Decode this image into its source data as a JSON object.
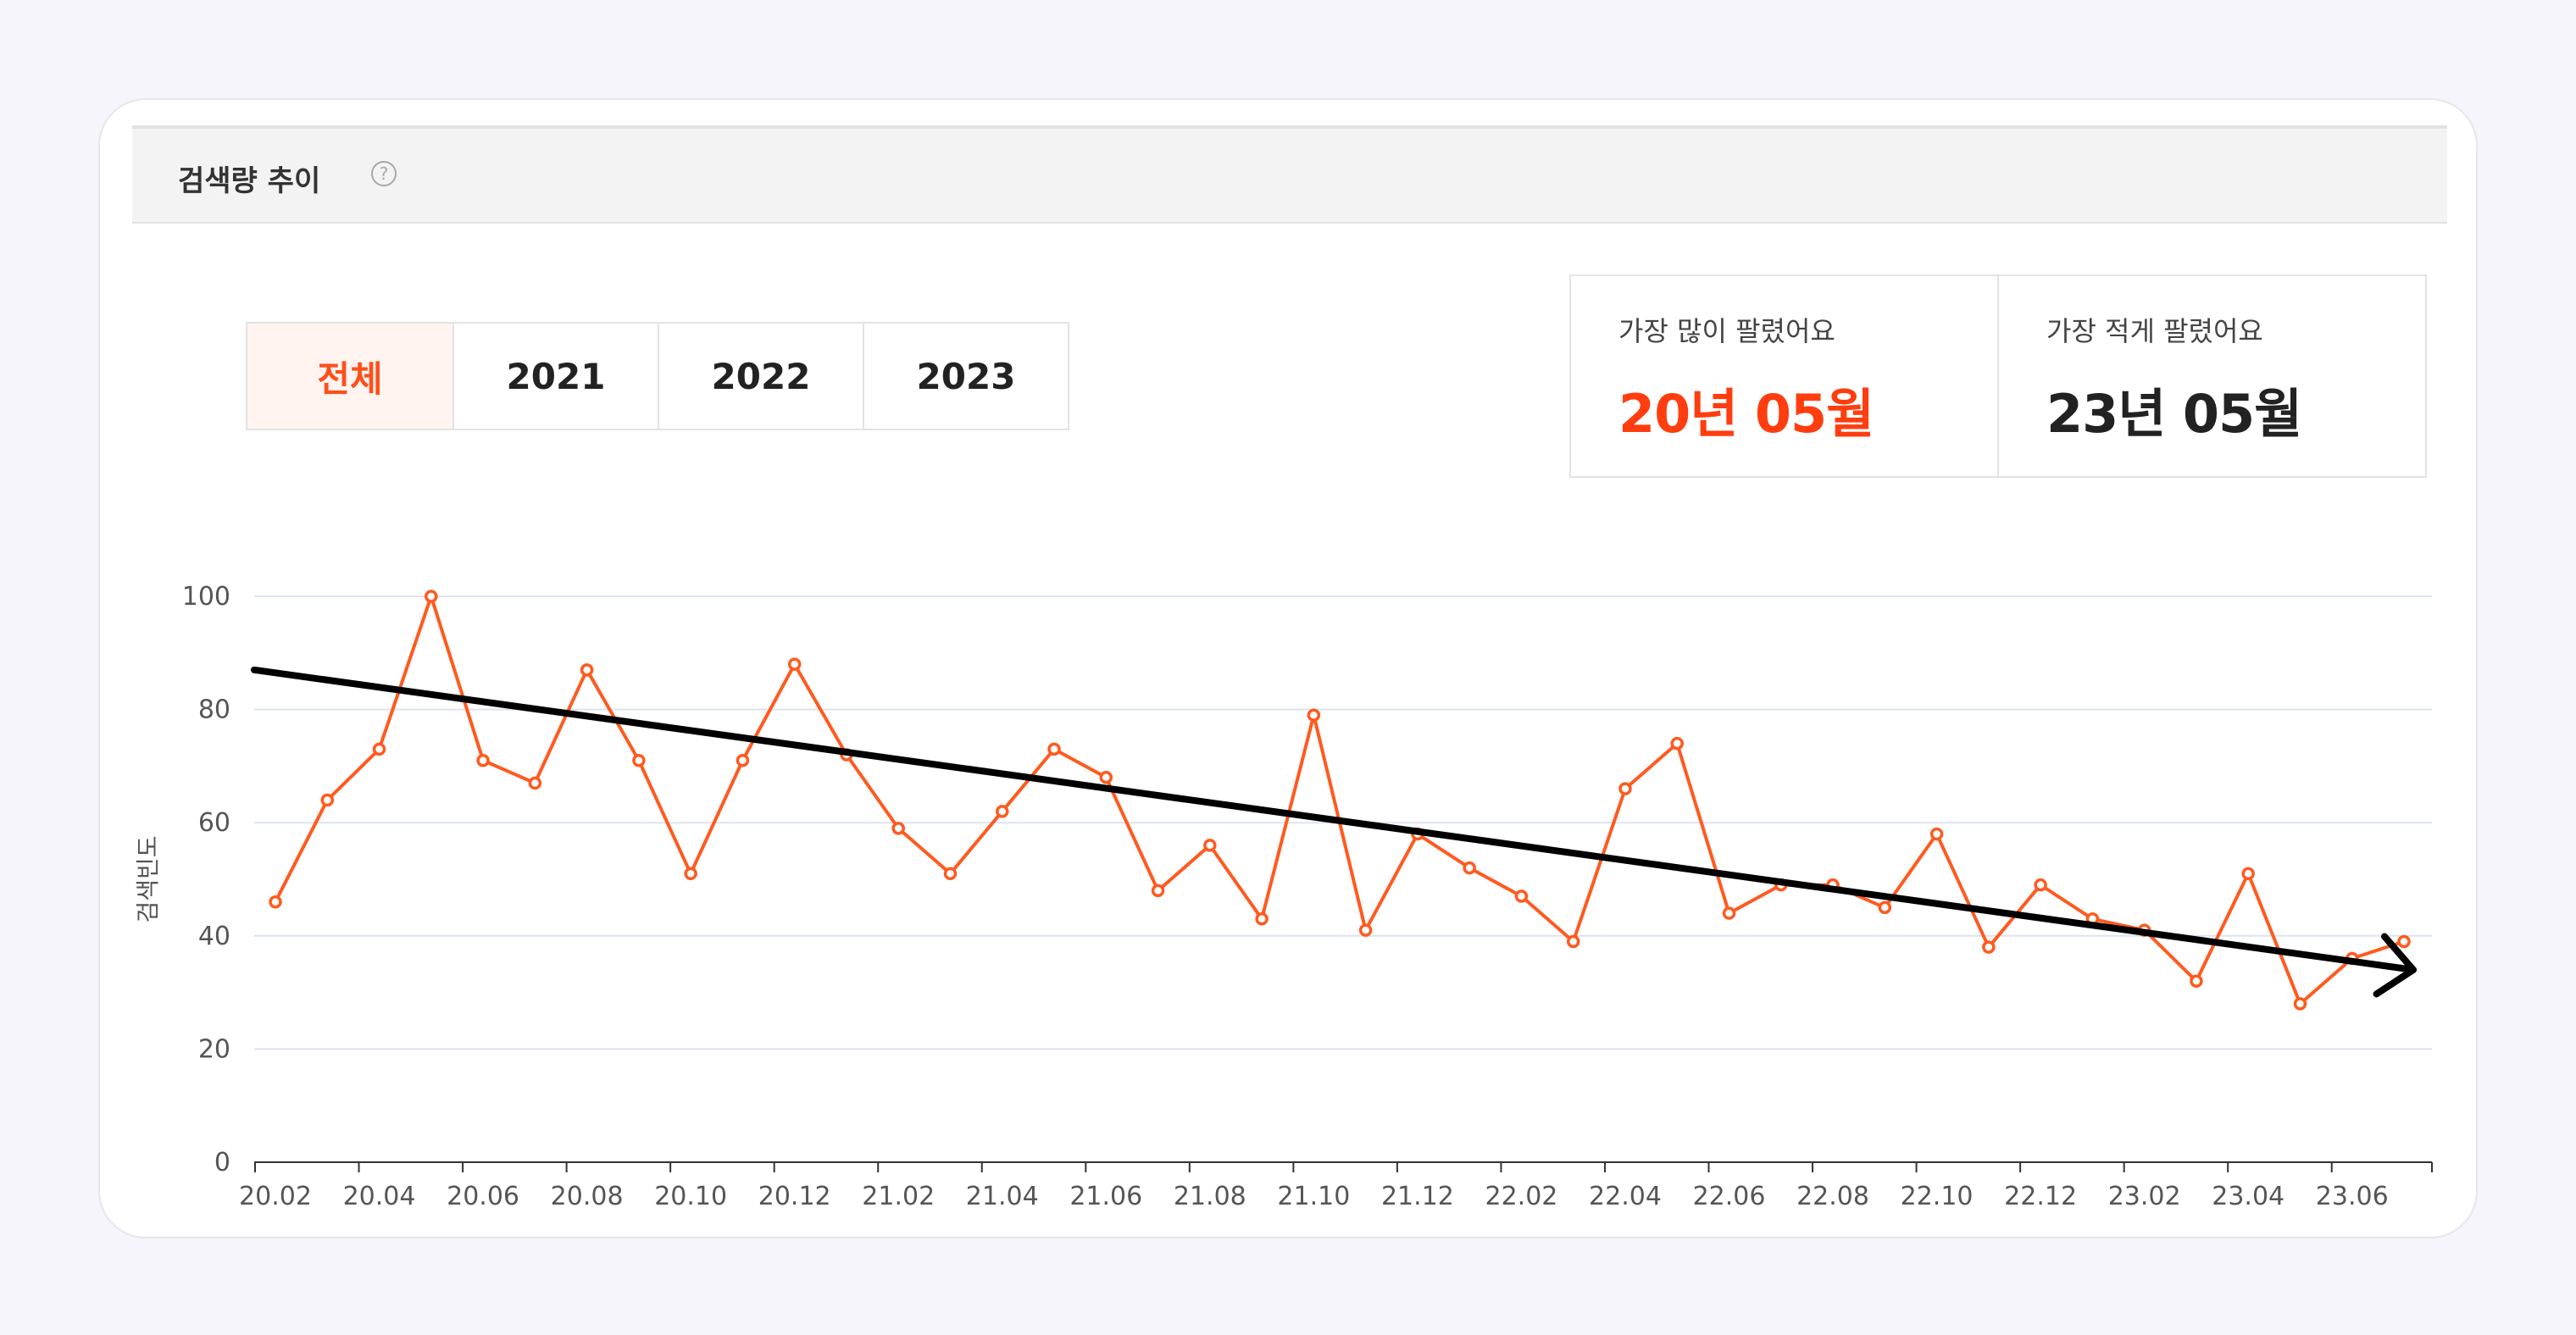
{
  "panel": {
    "title": "검색량 추이",
    "help_icon": "question-circle-icon"
  },
  "tabs": [
    {
      "label": "전체",
      "active": true
    },
    {
      "label": "2021",
      "active": false
    },
    {
      "label": "2022",
      "active": false
    },
    {
      "label": "2023",
      "active": false
    }
  ],
  "stats": {
    "most_label": "가장 많이 팔렸어요",
    "most_value": "20년 05월",
    "least_label": "가장 적게 팔렸어요",
    "least_value": "23년 05월"
  },
  "colors": {
    "accent": "#ff5a1f",
    "trend": "#000000",
    "grid": "#dde3ee"
  },
  "chart_data": {
    "type": "line",
    "ylabel": "검색빈도",
    "ylim": [
      0,
      100
    ],
    "yticks": [
      0,
      20,
      40,
      60,
      80,
      100
    ],
    "xtick_labels": [
      "20.02",
      "20.04",
      "20.06",
      "20.08",
      "20.10",
      "20.12",
      "21.02",
      "21.04",
      "21.06",
      "21.08",
      "21.10",
      "21.12",
      "22.02",
      "22.04",
      "22.06",
      "22.08",
      "22.10",
      "22.12",
      "23.02",
      "23.04",
      "23.06"
    ],
    "x": [
      "20.02",
      "20.03",
      "20.04",
      "20.05",
      "20.06",
      "20.07",
      "20.08",
      "20.09",
      "20.10",
      "20.11",
      "20.12",
      "21.01",
      "21.02",
      "21.03",
      "21.04",
      "21.05",
      "21.06",
      "21.07",
      "21.08",
      "21.09",
      "21.10",
      "21.11",
      "21.12",
      "22.01",
      "22.02",
      "22.03",
      "22.04",
      "22.05",
      "22.06",
      "22.07",
      "22.08",
      "22.09",
      "22.10",
      "22.11",
      "22.12",
      "23.01",
      "23.02",
      "23.03",
      "23.04",
      "23.05",
      "23.06",
      "23.07"
    ],
    "series": [
      {
        "values": [
          46,
          64,
          73,
          100,
          71,
          67,
          87,
          71,
          51,
          71,
          88,
          72,
          59,
          51,
          62,
          73,
          68,
          48,
          56,
          43,
          79,
          41,
          58,
          52,
          47,
          39,
          66,
          74,
          44,
          49,
          49,
          45,
          58,
          38,
          49,
          43,
          41,
          32,
          51,
          28,
          36,
          39
        ]
      }
    ],
    "trendline": {
      "start": [
        "20.02",
        87
      ],
      "end": [
        "23.07",
        34
      ]
    },
    "grid": true
  }
}
